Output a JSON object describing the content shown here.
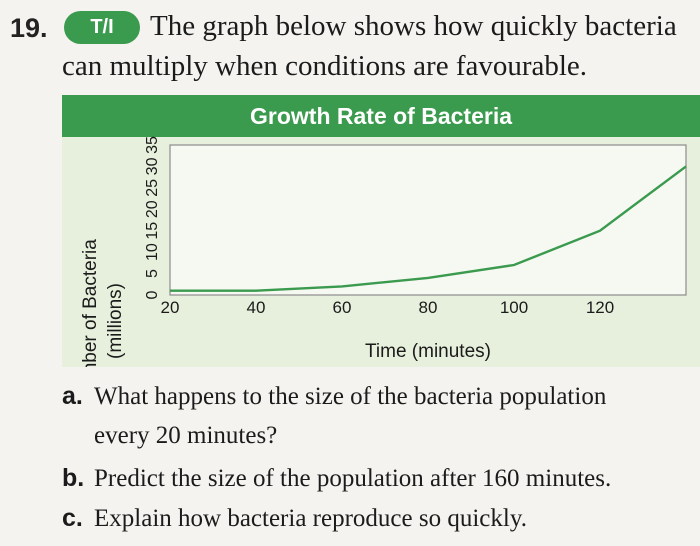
{
  "question": {
    "number": "19.",
    "badge": "T/I",
    "intro_line1": "The graph below shows how quickly bacteria",
    "intro_line2": "can multiply when conditions are favourable."
  },
  "chart_data": {
    "type": "line",
    "title": "Growth Rate of Bacteria",
    "xlabel": "Time (minutes)",
    "ylabel_line1": "Number of Bacteria",
    "ylabel_line2": "(millions)",
    "x_ticks": [
      "20",
      "40",
      "60",
      "80",
      "100",
      "120"
    ],
    "y_ticks": [
      "0",
      "5",
      "10",
      "15",
      "20",
      "25",
      "30",
      "35"
    ],
    "xlim": [
      20,
      140
    ],
    "ylim": [
      0,
      35
    ],
    "x": [
      20,
      40,
      60,
      80,
      100,
      120,
      140
    ],
    "values": [
      1,
      1,
      2,
      4,
      7,
      15,
      30
    ],
    "line_color": "#3a9a4d",
    "grid": true
  },
  "parts": [
    {
      "label": "a.",
      "line1": "What happens to the size of the bacteria population",
      "line2": "every 20 minutes?"
    },
    {
      "label": "b.",
      "line1": "Predict the size of the population after 160 minutes.",
      "line2": ""
    },
    {
      "label": "c.",
      "line1": "Explain how bacteria reproduce so quickly.",
      "line2": ""
    }
  ]
}
